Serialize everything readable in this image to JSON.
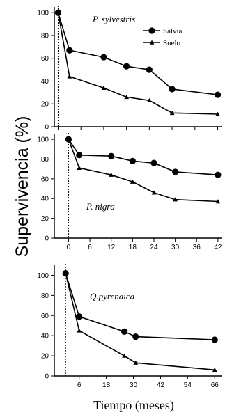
{
  "figure": {
    "ylabel": "Supervivencia (%)",
    "xlabel": "Tiempo (meses)"
  },
  "chart_data": [
    {
      "type": "line",
      "annotation": "P.  sylvestris",
      "x_ticks": [
        0,
        6,
        12,
        18,
        24,
        30,
        36,
        42
      ],
      "x_tick_labels": [],
      "xlim": [
        -1,
        43
      ],
      "y_ticks": [
        0,
        20,
        40,
        60,
        80,
        100
      ],
      "ylim": [
        0,
        105
      ],
      "vline_x": 0,
      "legend": {
        "placement": "top-right",
        "entries": [
          "Salvia",
          "Suelo"
        ]
      },
      "series": [
        {
          "name": "Salvia",
          "marker": "circle",
          "x": [
            0,
            3,
            12,
            18,
            24,
            30,
            42
          ],
          "values": [
            100,
            67,
            61,
            53,
            50,
            33,
            28
          ]
        },
        {
          "name": "Suelo",
          "marker": "triangle",
          "x": [
            0,
            3,
            12,
            18,
            24,
            30,
            42
          ],
          "values": [
            100,
            44,
            34,
            26,
            23,
            12,
            11
          ]
        }
      ]
    },
    {
      "type": "line",
      "annotation": "P. nigra",
      "x_ticks": [
        0,
        6,
        12,
        18,
        24,
        30,
        36,
        42
      ],
      "x_tick_labels": [
        "0",
        "6",
        "12",
        "18",
        "24",
        "30",
        "36",
        "42"
      ],
      "xlim": [
        -4,
        43
      ],
      "y_ticks": [
        0,
        20,
        40,
        60,
        80,
        100
      ],
      "ylim": [
        0,
        105
      ],
      "vline_x": 0,
      "series": [
        {
          "name": "Salvia",
          "marker": "circle",
          "x": [
            0,
            3,
            12,
            18,
            24,
            30,
            42
          ],
          "values": [
            100,
            84,
            83,
            78,
            76,
            67,
            64
          ]
        },
        {
          "name": "Suelo",
          "marker": "triangle",
          "x": [
            0,
            3,
            12,
            18,
            24,
            30,
            42
          ],
          "values": [
            100,
            71,
            64,
            57,
            46,
            39,
            37
          ]
        }
      ]
    },
    {
      "type": "line",
      "annotation": "Q.pyrenaica",
      "x_ticks": [
        6,
        18,
        30,
        42,
        54,
        66
      ],
      "x_tick_labels": [
        "6",
        "18",
        "30",
        "42",
        "54",
        "66"
      ],
      "xlim": [
        -5,
        69
      ],
      "y_ticks": [
        0,
        20,
        40,
        60,
        80,
        100
      ],
      "ylim": [
        0,
        110
      ],
      "vline_x": 0,
      "series": [
        {
          "name": "Salvia",
          "marker": "circle",
          "x": [
            0,
            6,
            26,
            31,
            66
          ],
          "values": [
            102,
            59,
            44,
            39,
            36
          ]
        },
        {
          "name": "Suelo",
          "marker": "triangle",
          "x": [
            0,
            6,
            26,
            31,
            66
          ],
          "values": [
            102,
            45,
            20,
            13,
            6
          ]
        }
      ]
    }
  ]
}
